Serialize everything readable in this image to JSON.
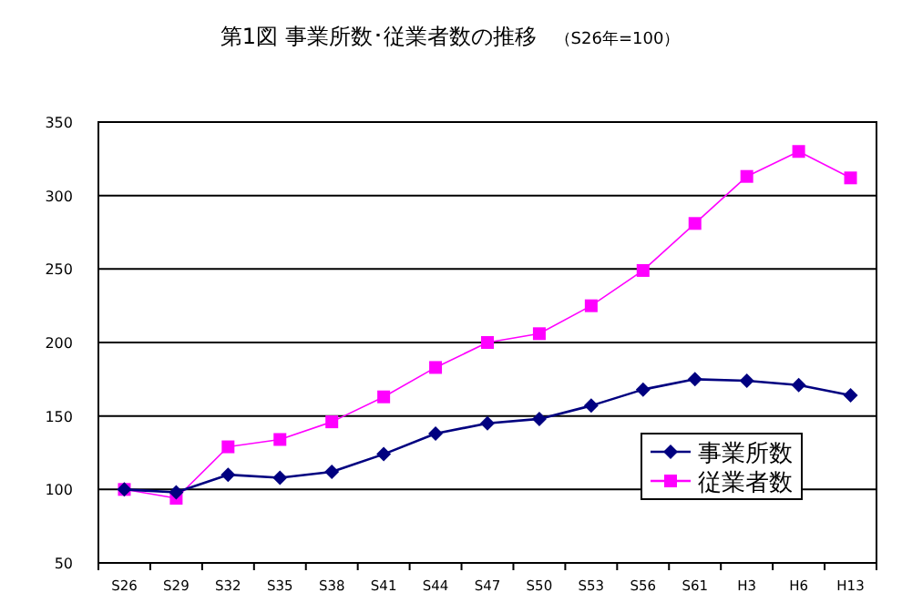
{
  "chart_data": {
    "type": "line",
    "title": "第1図  事業所数･従業者数の推移",
    "subtitle": "（S26年=100）",
    "categories": [
      "S26",
      "S29",
      "S32",
      "S35",
      "S38",
      "S41",
      "S44",
      "S47",
      "S50",
      "S53",
      "S56",
      "S61",
      "H3",
      "H6",
      "H13"
    ],
    "series": [
      {
        "name": "事業所数",
        "color": "#000080",
        "marker": "diamond",
        "values": [
          100,
          98,
          110,
          108,
          112,
          124,
          138,
          145,
          148,
          157,
          168,
          175,
          174,
          171,
          164
        ]
      },
      {
        "name": "従業者数",
        "color": "#ff00ff",
        "marker": "square",
        "values": [
          100,
          94,
          129,
          134,
          146,
          163,
          183,
          200,
          206,
          225,
          249,
          281,
          313,
          330,
          312
        ]
      }
    ],
    "ylim": [
      50,
      350
    ],
    "yticks": [
      50,
      100,
      150,
      200,
      250,
      300,
      350
    ],
    "grid": "y",
    "legend": "bottom right"
  }
}
